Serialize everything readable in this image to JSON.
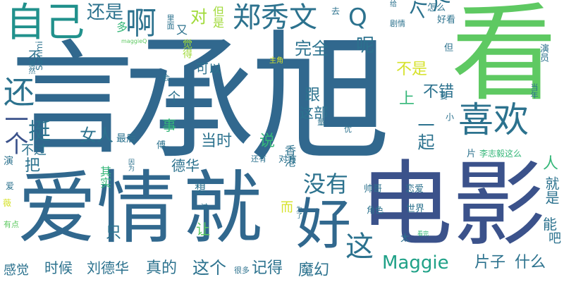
{
  "palette": {
    "dark_purple": "#440154",
    "indigo": "#3b528b",
    "blue": "#31688e",
    "teal": "#21918c",
    "teal_green": "#1fa187",
    "green": "#35b779",
    "light_green": "#5ec962",
    "lime": "#a0da39",
    "yellow": "#d6e22b"
  },
  "words": [
    {
      "text": "言",
      "color": "#31688e"
    },
    {
      "text": "承",
      "color": "#31688e"
    },
    {
      "text": "旭",
      "color": "#31688e"
    },
    {
      "text": "看",
      "color": "#5ec962"
    },
    {
      "text": "爱情",
      "color": "#31688e"
    },
    {
      "text": "就",
      "color": "#31688e"
    },
    {
      "text": "电影",
      "color": "#3b528b"
    },
    {
      "text": "好",
      "color": "#31688e"
    },
    {
      "text": "自己",
      "color": "#21918c"
    },
    {
      "text": "喜欢",
      "color": "#2c728e"
    },
    {
      "text": "郑秀文",
      "color": "#2c728e"
    },
    {
      "text": "还",
      "color": "#2c728e"
    },
    {
      "text": "啊",
      "color": "#2c728e"
    },
    {
      "text": "还是",
      "color": "#2c728e"
    },
    {
      "text": "个人",
      "color": "#2c728e"
    },
    {
      "text": "Q",
      "color": "#2c728e"
    },
    {
      "text": "没有",
      "color": "#2c728e"
    },
    {
      "text": "这",
      "color": "#2c728e"
    },
    {
      "text": "Maggie",
      "color": "#1fa187"
    },
    {
      "text": "一个",
      "color": "#3b528b"
    },
    {
      "text": "挺",
      "color": "#2c728e"
    },
    {
      "text": "女人",
      "color": "#2c728e"
    },
    {
      "text": "完全",
      "color": "#2c728e"
    },
    {
      "text": "呢",
      "color": "#2c728e"
    },
    {
      "text": "跟",
      "color": "#2c728e"
    },
    {
      "text": "这部",
      "color": "#2c728e"
    },
    {
      "text": "不错",
      "color": "#2c728e"
    },
    {
      "text": "一起",
      "color": "#2c728e"
    },
    {
      "text": "德华",
      "color": "#2c728e"
    },
    {
      "text": "当时",
      "color": "#2c728e"
    },
    {
      "text": "时候",
      "color": "#2c728e"
    },
    {
      "text": "刘德华",
      "color": "#2c728e"
    },
    {
      "text": "真的",
      "color": "#2c728e"
    },
    {
      "text": "这个",
      "color": "#2c728e"
    },
    {
      "text": "记得",
      "color": "#2c728e"
    },
    {
      "text": "魔幻",
      "color": "#2c728e"
    },
    {
      "text": "片子",
      "color": "#2c728e"
    },
    {
      "text": "什么",
      "color": "#2c728e"
    },
    {
      "text": "感觉",
      "color": "#2c728e"
    },
    {
      "text": "可以",
      "color": "#2c728e"
    },
    {
      "text": "对",
      "color": "#a0da39"
    },
    {
      "text": "不是",
      "color": "#d6e22b"
    },
    {
      "text": "上",
      "color": "#35b779"
    },
    {
      "text": "说",
      "color": "#35b779"
    },
    {
      "text": "事",
      "color": "#35b779"
    },
    {
      "text": "人",
      "color": "#35b779"
    },
    {
      "text": "让",
      "color": "#5ec962"
    },
    {
      "text": "只",
      "color": "#2c728e"
    },
    {
      "text": "把",
      "color": "#2c728e"
    },
    {
      "text": "不过",
      "color": "#2c728e"
    },
    {
      "text": "不",
      "color": "#2c728e"
    },
    {
      "text": "能",
      "color": "#2c728e"
    },
    {
      "text": "吧",
      "color": "#2c728e"
    },
    {
      "text": "个",
      "color": "#2c728e"
    },
    {
      "text": "就是",
      "color": "#2c728e"
    },
    {
      "text": "香港",
      "color": "#2c728e"
    },
    {
      "text": "最后",
      "color": "#2c728e"
    },
    {
      "text": "对方",
      "color": "#2c728e"
    },
    {
      "text": "想",
      "color": "#2c728e"
    },
    {
      "text": "帅哥",
      "color": "#2c728e"
    },
    {
      "text": "恋爱",
      "color": "#2c728e"
    },
    {
      "text": "世界",
      "color": "#2c728e"
    },
    {
      "text": "角色",
      "color": "#2c728e"
    },
    {
      "text": "太",
      "color": "#2c728e"
    },
    {
      "text": "很多",
      "color": "#2c728e"
    },
    {
      "text": "其实",
      "color": "#35b779"
    },
    {
      "text": "因为",
      "color": "#2c728e"
    },
    {
      "text": "还有",
      "color": "#2c728e"
    },
    {
      "text": "过",
      "color": "#2c728e"
    },
    {
      "text": "而",
      "color": "#d6e22b"
    },
    {
      "text": "为了",
      "color": "#2c728e"
    },
    {
      "text": "看完",
      "color": "#35b779"
    },
    {
      "text": "李志毅这么",
      "color": "#35b779"
    },
    {
      "text": "片",
      "color": "#2c728e"
    },
    {
      "text": "小",
      "color": "#2c728e"
    },
    {
      "text": "优",
      "color": "#2c728e"
    },
    {
      "text": "要",
      "color": "#2c728e"
    },
    {
      "text": "量",
      "color": "#2c728e"
    },
    {
      "text": "但是",
      "color": "#a0da39"
    },
    {
      "text": "多",
      "color": "#35b779"
    },
    {
      "text": "又",
      "color": "#2c728e"
    },
    {
      "text": "觉得",
      "color": "#a0da39"
    },
    {
      "text": "里面",
      "color": "#2c728e"
    },
    {
      "text": "去",
      "color": "#2c728e"
    },
    {
      "text": "给",
      "color": "#2c728e"
    },
    {
      "text": "怎么",
      "color": "#2c728e"
    },
    {
      "text": "好看",
      "color": "#2c728e"
    },
    {
      "text": "剧情",
      "color": "#2c728e"
    },
    {
      "text": "但",
      "color": "#2c728e"
    },
    {
      "text": "当年",
      "color": "#2c728e"
    },
    {
      "text": "演员",
      "color": "#2c728e"
    },
    {
      "text": "maggieQ",
      "color": "#5ec962"
    },
    {
      "text": "主角",
      "color": "#d6e22b"
    },
    {
      "text": "虽然",
      "color": "#2c728e"
    },
    {
      "text": "会",
      "color": "#2c728e"
    },
    {
      "text": "Sammi",
      "color": "#2c728e"
    },
    {
      "text": "傅",
      "color": "#2c728e"
    },
    {
      "text": "演",
      "color": "#2c728e"
    },
    {
      "text": "爱",
      "color": "#2c728e"
    },
    {
      "text": "薇",
      "color": "#d6e22b"
    },
    {
      "text": "有点",
      "color": "#5ec962"
    }
  ]
}
